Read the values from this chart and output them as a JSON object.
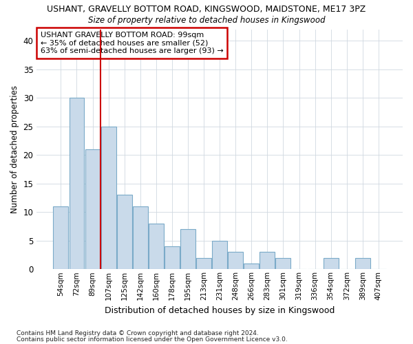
{
  "title1": "USHANT, GRAVELLY BOTTOM ROAD, KINGSWOOD, MAIDSTONE, ME17 3PZ",
  "title2": "Size of property relative to detached houses in Kingswood",
  "xlabel": "Distribution of detached houses by size in Kingswood",
  "ylabel": "Number of detached properties",
  "categories": [
    "54sqm",
    "72sqm",
    "89sqm",
    "107sqm",
    "125sqm",
    "142sqm",
    "160sqm",
    "178sqm",
    "195sqm",
    "213sqm",
    "231sqm",
    "248sqm",
    "266sqm",
    "283sqm",
    "301sqm",
    "319sqm",
    "336sqm",
    "354sqm",
    "372sqm",
    "389sqm",
    "407sqm"
  ],
  "values": [
    11,
    30,
    21,
    25,
    13,
    11,
    8,
    4,
    7,
    2,
    5,
    3,
    1,
    3,
    2,
    0,
    0,
    2,
    0,
    2,
    0
  ],
  "bar_color": "#c9daea",
  "bar_edge_color": "#7aaac8",
  "reference_line_index": 2,
  "reference_line_color": "#cc0000",
  "annotation_title": "USHANT GRAVELLY BOTTOM ROAD: 99sqm",
  "annotation_line1": "← 35% of detached houses are smaller (52)",
  "annotation_line2": "63% of semi-detached houses are larger (93) →",
  "ylim": [
    0,
    42
  ],
  "yticks": [
    0,
    5,
    10,
    15,
    20,
    25,
    30,
    35,
    40
  ],
  "footer1": "Contains HM Land Registry data © Crown copyright and database right 2024.",
  "footer2": "Contains public sector information licensed under the Open Government Licence v3.0.",
  "bg_color": "#ffffff",
  "plot_bg_color": "#ffffff",
  "grid_color": "#d0d8e0"
}
